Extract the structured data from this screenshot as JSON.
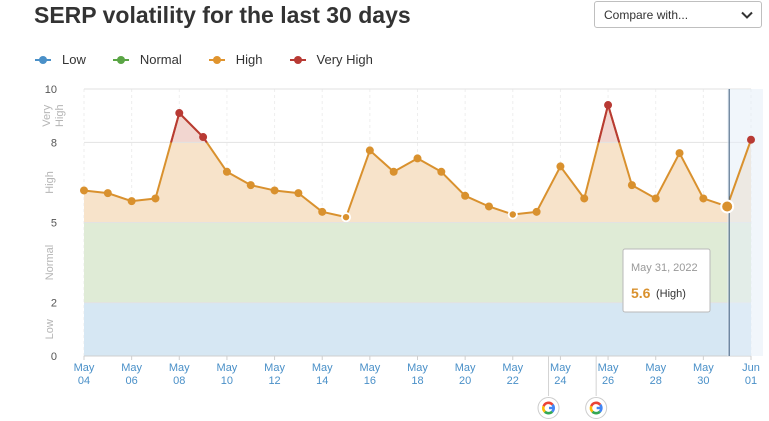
{
  "page": {
    "title": "SERP volatility for the last 30 days",
    "compare": {
      "label": "Compare with...",
      "icon": "chevron-down-icon"
    }
  },
  "legend": [
    {
      "name": "Low",
      "color": "#4a90c8"
    },
    {
      "name": "Normal",
      "color": "#5aa545"
    },
    {
      "name": "High",
      "color": "#e0942e"
    },
    {
      "name": "Very High",
      "color": "#b83a34"
    }
  ],
  "tooltip": {
    "date": "May 31, 2022",
    "value": "5.6",
    "level": "(High)"
  },
  "chart_data": {
    "type": "line",
    "ylim": [
      0,
      10
    ],
    "yticks": [
      "0",
      "2",
      "5",
      "8",
      "10"
    ],
    "band_labels": [
      {
        "text": "Low",
        "from": 0,
        "to": 2
      },
      {
        "text": "Normal",
        "from": 2,
        "to": 5
      },
      {
        "text": "High",
        "from": 5,
        "to": 8
      },
      {
        "text": "Very High",
        "from": 8,
        "to": 10
      }
    ],
    "bands": [
      {
        "from": 0,
        "to": 2,
        "color": "#d6e7f3"
      },
      {
        "from": 2,
        "to": 5,
        "color": "#dfebd6"
      },
      {
        "from": 5,
        "to": 8,
        "color": "#f7e3ca"
      },
      {
        "from": 8,
        "to": 10,
        "color": "#f2d6d0"
      }
    ],
    "colors": {
      "line": "#d9912e",
      "very_high": "#b83a34",
      "grid": "#e6e6e6",
      "axis_label": "#4a90c8"
    },
    "x_ticks": [
      {
        "month": "May",
        "day": "04",
        "index": 0
      },
      {
        "month": "May",
        "day": "06",
        "index": 2
      },
      {
        "month": "May",
        "day": "08",
        "index": 4
      },
      {
        "month": "May",
        "day": "10",
        "index": 6
      },
      {
        "month": "May",
        "day": "12",
        "index": 8
      },
      {
        "month": "May",
        "day": "14",
        "index": 10
      },
      {
        "month": "May",
        "day": "16",
        "index": 12
      },
      {
        "month": "May",
        "day": "18",
        "index": 14
      },
      {
        "month": "May",
        "day": "20",
        "index": 16
      },
      {
        "month": "May",
        "day": "22",
        "index": 18
      },
      {
        "month": "May",
        "day": "24",
        "index": 20
      },
      {
        "month": "May",
        "day": "26",
        "index": 22
      },
      {
        "month": "May",
        "day": "28",
        "index": 24
      },
      {
        "month": "May",
        "day": "30",
        "index": 26
      },
      {
        "month": "Jun",
        "day": "01",
        "index": 28
      }
    ],
    "dates": [
      "May 04",
      "May 05",
      "May 06",
      "May 07",
      "May 08",
      "May 09",
      "May 10",
      "May 11",
      "May 12",
      "May 13",
      "May 14",
      "May 15",
      "May 16",
      "May 17",
      "May 18",
      "May 19",
      "May 20",
      "May 21",
      "May 22",
      "May 23",
      "May 24",
      "May 25",
      "May 26",
      "May 27",
      "May 28",
      "May 29",
      "May 30",
      "May 31",
      "Jun 01"
    ],
    "values": [
      6.2,
      6.1,
      5.8,
      5.9,
      9.1,
      8.2,
      6.9,
      6.4,
      6.2,
      6.1,
      5.4,
      5.2,
      7.7,
      6.9,
      7.4,
      6.9,
      6.0,
      5.6,
      5.3,
      5.4,
      7.1,
      5.9,
      9.4,
      6.4,
      5.9,
      7.6,
      5.9,
      5.6,
      8.1
    ],
    "selected_index": 27,
    "google_updates": [
      {
        "index": 19.5,
        "icon": "google-icon"
      },
      {
        "index": 21.5,
        "icon": "google-icon"
      }
    ]
  }
}
